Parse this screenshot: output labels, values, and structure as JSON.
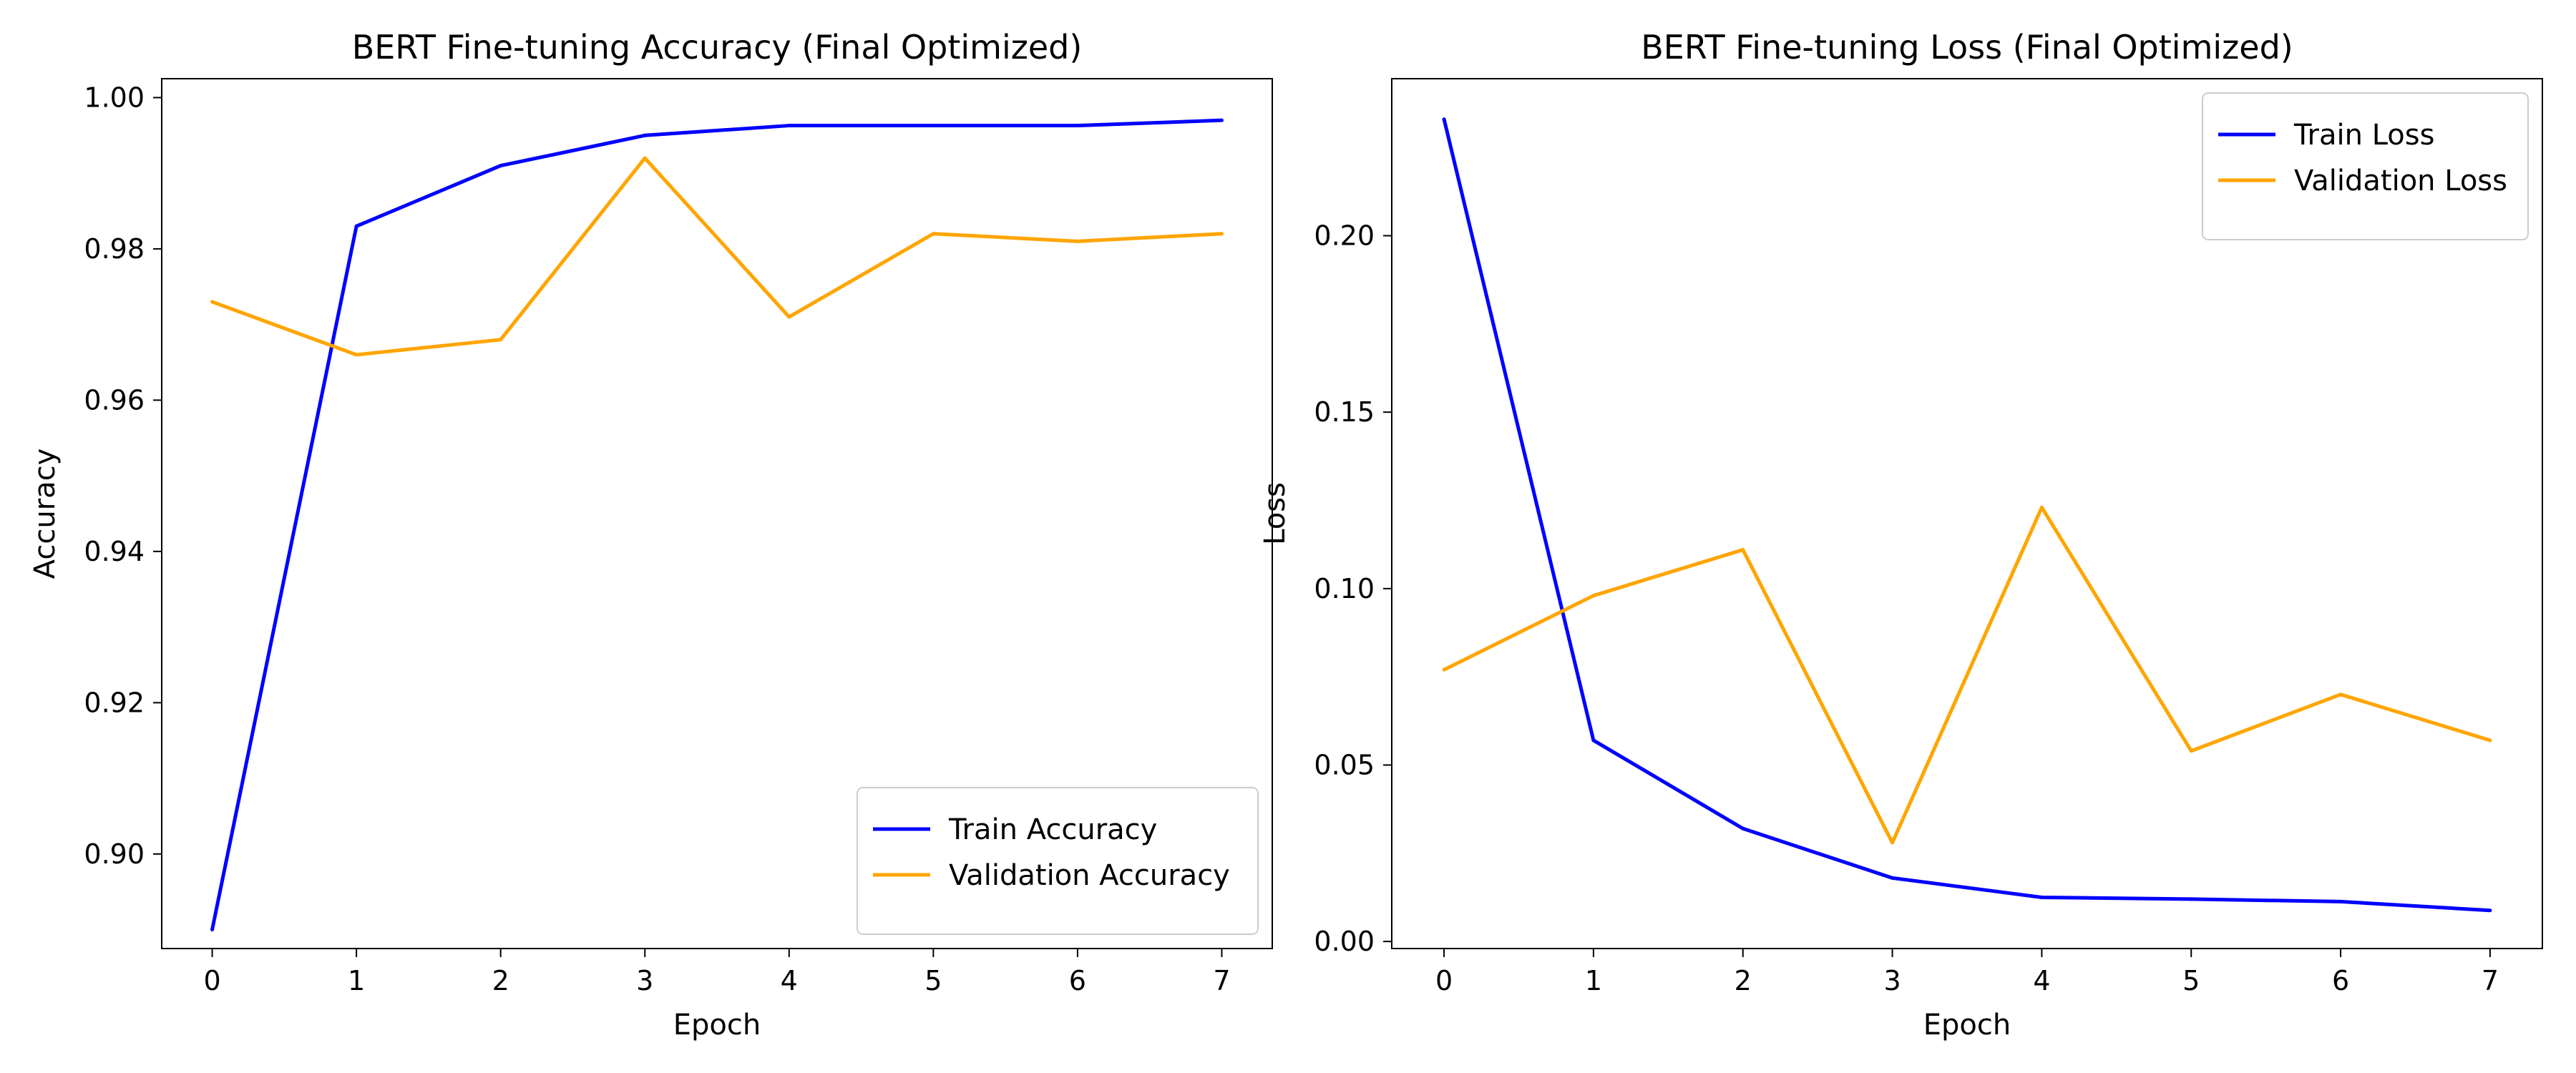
{
  "chart_data": [
    {
      "type": "line",
      "title": "BERT Fine-tuning Accuracy (Final Optimized)",
      "xlabel": "Epoch",
      "ylabel": "Accuracy",
      "x": [
        0,
        1,
        2,
        3,
        4,
        5,
        6,
        7
      ],
      "xlim": [
        -0.35,
        7.35
      ],
      "ylim": [
        0.8875,
        1.0025
      ],
      "xticks": [
        "0",
        "1",
        "2",
        "3",
        "4",
        "5",
        "6",
        "7"
      ],
      "yticks": [
        "0.90",
        "0.92",
        "0.94",
        "0.96",
        "0.98",
        "1.00"
      ],
      "grid": false,
      "legend_position": "lower right",
      "series": [
        {
          "name": "Train Accuracy",
          "color": "#0000ff",
          "values": [
            0.89,
            0.983,
            0.991,
            0.995,
            0.9963,
            0.9963,
            0.9963,
            0.997
          ]
        },
        {
          "name": "Validation Accuracy",
          "color": "#ffa500",
          "values": [
            0.973,
            0.966,
            0.968,
            0.992,
            0.971,
            0.982,
            0.981,
            0.982
          ]
        }
      ]
    },
    {
      "type": "line",
      "title": "BERT Fine-tuning Loss (Final Optimized)",
      "xlabel": "Epoch",
      "ylabel": "Loss",
      "x": [
        0,
        1,
        2,
        3,
        4,
        5,
        6,
        7
      ],
      "xlim": [
        -0.35,
        7.35
      ],
      "ylim": [
        -0.002,
        0.2445
      ],
      "xticks": [
        "0",
        "1",
        "2",
        "3",
        "4",
        "5",
        "6",
        "7"
      ],
      "yticks": [
        "0.00",
        "0.05",
        "0.10",
        "0.15",
        "0.20"
      ],
      "grid": false,
      "legend_position": "upper right",
      "series": [
        {
          "name": "Train Loss",
          "color": "#0000ff",
          "values": [
            0.233,
            0.057,
            0.032,
            0.018,
            0.0125,
            0.012,
            0.0113,
            0.0088
          ]
        },
        {
          "name": "Validation Loss",
          "color": "#ffa500",
          "values": [
            0.077,
            0.098,
            0.111,
            0.028,
            0.123,
            0.054,
            0.07,
            0.057
          ]
        }
      ]
    }
  ]
}
